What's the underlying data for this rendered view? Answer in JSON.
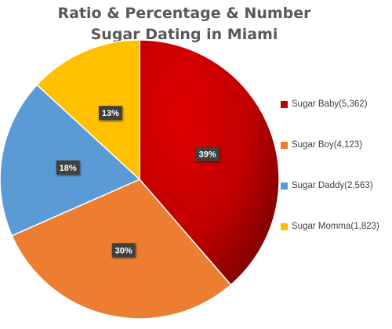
{
  "chart_data": {
    "type": "pie",
    "title_lines": [
      "Ratio & Percentage & Number",
      "Sugar Dating in Miami"
    ],
    "slices": [
      {
        "label": "Sugar Baby(5,362)",
        "value": 5362,
        "percent_label": "39%",
        "color": "#c00000"
      },
      {
        "label": "Sugar Boy(4,123)",
        "value": 4123,
        "percent_label": "30%",
        "color": "#ed7d31"
      },
      {
        "label": "Sugar Daddy(2,563)",
        "value": 2563,
        "percent_label": "18%",
        "color": "#5b9bd5"
      },
      {
        "label": "Sugar Momma(1,823)",
        "value": 1823,
        "percent_label": "13%",
        "color": "#ffc000"
      }
    ],
    "legend_position": "right",
    "start_angle": "top, clockwise"
  }
}
